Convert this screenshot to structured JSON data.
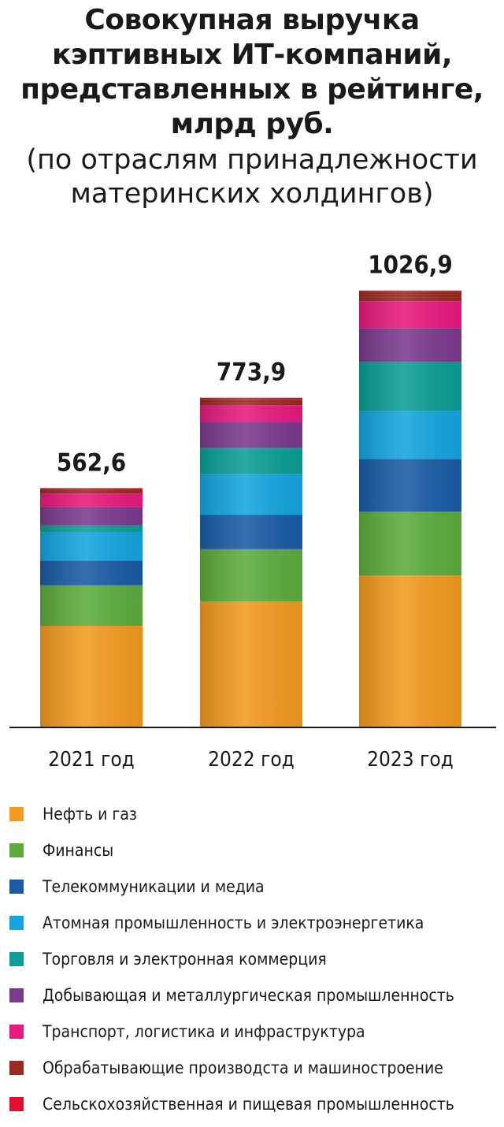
{
  "chart_data": {
    "type": "bar",
    "stacked": true,
    "title": "Совокупная выручка кэптивных ИТ-компаний, представленных в рейтинге, млрд руб.",
    "title_lines": [
      "Совокупная выручка",
      "кэптивных ИТ-компаний,",
      "представленных в рейтинге,",
      "млрд руб."
    ],
    "subtitle": "(по отраслям принадлежности материнских холдингов)",
    "subtitle_lines": [
      "(по отраслям принадлежности",
      "материнских холдингов)"
    ],
    "categories": [
      "2021 год",
      "2022 год",
      "2023 год"
    ],
    "totals": [
      562.6,
      773.9,
      1026.9
    ],
    "total_labels": [
      "562,6",
      "773,9",
      "1026,9"
    ],
    "ylim": [
      0,
      1030
    ],
    "grid": false,
    "legend_position": "bottom",
    "series": [
      {
        "name": "Нефть и газ",
        "color": "#f39a1f",
        "values": [
          239,
          296,
          357
        ]
      },
      {
        "name": "Финансы",
        "color": "#5cad3c",
        "values": [
          95,
          123,
          150
        ]
      },
      {
        "name": "Телекоммуникации и медиа",
        "color": "#1a5ba6",
        "values": [
          58,
          81,
          124
        ]
      },
      {
        "name": "Атомная промышленность и электроэнергетика",
        "color": "#14a5e0",
        "values": [
          66,
          96,
          113
        ]
      },
      {
        "name": "Торговля и электронная коммерция",
        "color": "#0b9e96",
        "values": [
          17,
          61,
          115
        ]
      },
      {
        "name": "Добывающая и металлургическая промышленность",
        "color": "#7b3a8e",
        "values": [
          43,
          61,
          79
        ]
      },
      {
        "name": "Транспорт, логистика и инфраструктура",
        "color": "#e8197f",
        "values": [
          32,
          39,
          64
        ]
      },
      {
        "name": "Обрабатывающие производста и машиностроение",
        "color": "#9b2a22",
        "values": [
          10,
          15,
          23
        ]
      },
      {
        "name": "Сельскохозяйственная и пищевая промышленность",
        "color": "#e30f2d",
        "values": [
          2.6,
          2.9,
          1.9
        ]
      }
    ]
  }
}
